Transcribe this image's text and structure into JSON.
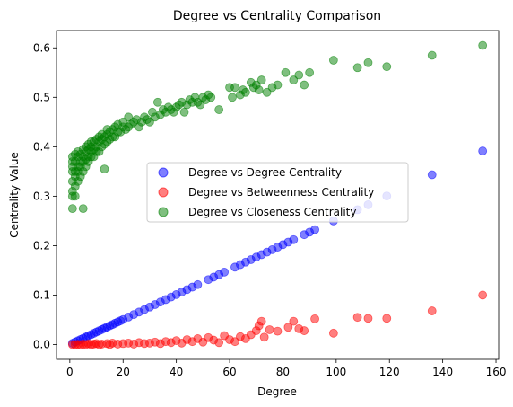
{
  "chart_data": {
    "type": "scatter",
    "title": "Degree vs Centrality Comparison",
    "xlabel": "Degree",
    "ylabel": "Centrality Value",
    "xlim": [
      -5,
      161
    ],
    "ylim": [
      -0.03,
      0.635
    ],
    "xticks": [
      "0",
      "20",
      "40",
      "60",
      "80",
      "100",
      "120",
      "140",
      "160"
    ],
    "yticks": [
      "0.0",
      "0.1",
      "0.2",
      "0.3",
      "0.4",
      "0.5",
      "0.6"
    ],
    "legend_position": "center-right",
    "grid": false,
    "series": [
      {
        "name": "Degree vs Degree Centrality",
        "color": "#0000ff",
        "points": [
          [
            1,
            0.0025
          ],
          [
            2,
            0.005
          ],
          [
            3,
            0.0076
          ],
          [
            4,
            0.0101
          ],
          [
            5,
            0.0126
          ],
          [
            6,
            0.0151
          ],
          [
            7,
            0.0177
          ],
          [
            8,
            0.0202
          ],
          [
            9,
            0.0227
          ],
          [
            10,
            0.0253
          ],
          [
            11,
            0.0278
          ],
          [
            12,
            0.0303
          ],
          [
            13,
            0.0328
          ],
          [
            14,
            0.0354
          ],
          [
            15,
            0.0379
          ],
          [
            16,
            0.0404
          ],
          [
            17,
            0.043
          ],
          [
            18,
            0.0455
          ],
          [
            19,
            0.048
          ],
          [
            20,
            0.0505
          ],
          [
            22,
            0.0556
          ],
          [
            24,
            0.0606
          ],
          [
            26,
            0.0657
          ],
          [
            28,
            0.0707
          ],
          [
            30,
            0.0758
          ],
          [
            32,
            0.0808
          ],
          [
            34,
            0.0859
          ],
          [
            36,
            0.0909
          ],
          [
            38,
            0.096
          ],
          [
            40,
            0.101
          ],
          [
            42,
            0.1061
          ],
          [
            44,
            0.1111
          ],
          [
            46,
            0.1162
          ],
          [
            48,
            0.1212
          ],
          [
            52,
            0.1313
          ],
          [
            54,
            0.1364
          ],
          [
            56,
            0.1414
          ],
          [
            58,
            0.1465
          ],
          [
            62,
            0.1566
          ],
          [
            64,
            0.1616
          ],
          [
            66,
            0.1667
          ],
          [
            68,
            0.1717
          ],
          [
            70,
            0.1768
          ],
          [
            72,
            0.1818
          ],
          [
            74,
            0.1869
          ],
          [
            76,
            0.1919
          ],
          [
            78,
            0.197
          ],
          [
            80,
            0.202
          ],
          [
            82,
            0.2071
          ],
          [
            84,
            0.2121
          ],
          [
            88,
            0.2222
          ],
          [
            90,
            0.2273
          ],
          [
            92,
            0.2323
          ],
          [
            99,
            0.25
          ],
          [
            108,
            0.2727
          ],
          [
            112,
            0.2828
          ],
          [
            119,
            0.3005
          ],
          [
            136,
            0.3434
          ],
          [
            155,
            0.3914
          ]
        ]
      },
      {
        "name": "Degree vs Betweenness Centrality",
        "color": "#ff0000",
        "points": [
          [
            1,
            0.0
          ],
          [
            2,
            0.0
          ],
          [
            3,
            0.0005
          ],
          [
            4,
            0.0
          ],
          [
            5,
            0.001
          ],
          [
            6,
            0.0
          ],
          [
            7,
            0.0015
          ],
          [
            8,
            0.0
          ],
          [
            9,
            0.001
          ],
          [
            10,
            0.002
          ],
          [
            11,
            0.0
          ],
          [
            12,
            0.001
          ],
          [
            14,
            0.002
          ],
          [
            15,
            0.0
          ],
          [
            16,
            0.003
          ],
          [
            18,
            0.001
          ],
          [
            20,
            0.002
          ],
          [
            22,
            0.003
          ],
          [
            24,
            0.001
          ],
          [
            26,
            0.004
          ],
          [
            28,
            0.002
          ],
          [
            30,
            0.003
          ],
          [
            32,
            0.005
          ],
          [
            34,
            0.002
          ],
          [
            36,
            0.006
          ],
          [
            38,
            0.004
          ],
          [
            40,
            0.008
          ],
          [
            42,
            0.003
          ],
          [
            44,
            0.01
          ],
          [
            46,
            0.006
          ],
          [
            48,
            0.012
          ],
          [
            50,
            0.005
          ],
          [
            52,
            0.014
          ],
          [
            54,
            0.009
          ],
          [
            56,
            0.004
          ],
          [
            58,
            0.018
          ],
          [
            60,
            0.01
          ],
          [
            62,
            0.006
          ],
          [
            64,
            0.016
          ],
          [
            66,
            0.012
          ],
          [
            68,
            0.02
          ],
          [
            70,
            0.028
          ],
          [
            71,
            0.038
          ],
          [
            72,
            0.047
          ],
          [
            73,
            0.015
          ],
          [
            75,
            0.03
          ],
          [
            78,
            0.027
          ],
          [
            82,
            0.035
          ],
          [
            84,
            0.047
          ],
          [
            86,
            0.032
          ],
          [
            88,
            0.028
          ],
          [
            92,
            0.052
          ],
          [
            99,
            0.023
          ],
          [
            108,
            0.055
          ],
          [
            112,
            0.053
          ],
          [
            119,
            0.053
          ],
          [
            136,
            0.068
          ],
          [
            155,
            0.1
          ]
        ]
      },
      {
        "name": "Degree vs Closeness Centrality",
        "color": "#008000",
        "points": [
          [
            1,
            0.275
          ],
          [
            1,
            0.3
          ],
          [
            1,
            0.31
          ],
          [
            1,
            0.33
          ],
          [
            1,
            0.35
          ],
          [
            1,
            0.36
          ],
          [
            1,
            0.37
          ],
          [
            1,
            0.38
          ],
          [
            2,
            0.3
          ],
          [
            2,
            0.32
          ],
          [
            2,
            0.34
          ],
          [
            2,
            0.35
          ],
          [
            2,
            0.37
          ],
          [
            2,
            0.385
          ],
          [
            3,
            0.33
          ],
          [
            3,
            0.35
          ],
          [
            3,
            0.36
          ],
          [
            3,
            0.38
          ],
          [
            3,
            0.39
          ],
          [
            4,
            0.34
          ],
          [
            4,
            0.36
          ],
          [
            4,
            0.37
          ],
          [
            4,
            0.385
          ],
          [
            5,
            0.275
          ],
          [
            5,
            0.35
          ],
          [
            5,
            0.37
          ],
          [
            5,
            0.38
          ],
          [
            5,
            0.395
          ],
          [
            6,
            0.36
          ],
          [
            6,
            0.375
          ],
          [
            6,
            0.39
          ],
          [
            6,
            0.4
          ],
          [
            7,
            0.37
          ],
          [
            7,
            0.38
          ],
          [
            7,
            0.395
          ],
          [
            7,
            0.405
          ],
          [
            8,
            0.38
          ],
          [
            8,
            0.39
          ],
          [
            8,
            0.4
          ],
          [
            8,
            0.41
          ],
          [
            9,
            0.38
          ],
          [
            9,
            0.395
          ],
          [
            9,
            0.41
          ],
          [
            10,
            0.39
          ],
          [
            10,
            0.4
          ],
          [
            10,
            0.415
          ],
          [
            11,
            0.39
          ],
          [
            11,
            0.41
          ],
          [
            11,
            0.42
          ],
          [
            12,
            0.4
          ],
          [
            12,
            0.415
          ],
          [
            12,
            0.425
          ],
          [
            13,
            0.355
          ],
          [
            13,
            0.405
          ],
          [
            13,
            0.42
          ],
          [
            14,
            0.41
          ],
          [
            14,
            0.425
          ],
          [
            14,
            0.435
          ],
          [
            15,
            0.415
          ],
          [
            15,
            0.43
          ],
          [
            16,
            0.42
          ],
          [
            16,
            0.435
          ],
          [
            17,
            0.42
          ],
          [
            17,
            0.44
          ],
          [
            18,
            0.43
          ],
          [
            18,
            0.445
          ],
          [
            19,
            0.43
          ],
          [
            20,
            0.44
          ],
          [
            20,
            0.45
          ],
          [
            21,
            0.435
          ],
          [
            22,
            0.44
          ],
          [
            22,
            0.46
          ],
          [
            23,
            0.445
          ],
          [
            24,
            0.45
          ],
          [
            25,
            0.455
          ],
          [
            26,
            0.44
          ],
          [
            27,
            0.45
          ],
          [
            28,
            0.46
          ],
          [
            29,
            0.455
          ],
          [
            30,
            0.45
          ],
          [
            31,
            0.47
          ],
          [
            32,
            0.46
          ],
          [
            33,
            0.49
          ],
          [
            34,
            0.465
          ],
          [
            35,
            0.475
          ],
          [
            36,
            0.47
          ],
          [
            37,
            0.48
          ],
          [
            38,
            0.475
          ],
          [
            39,
            0.47
          ],
          [
            40,
            0.48
          ],
          [
            41,
            0.485
          ],
          [
            42,
            0.49
          ],
          [
            43,
            0.47
          ],
          [
            44,
            0.485
          ],
          [
            45,
            0.495
          ],
          [
            46,
            0.49
          ],
          [
            47,
            0.5
          ],
          [
            48,
            0.49
          ],
          [
            49,
            0.485
          ],
          [
            50,
            0.5
          ],
          [
            51,
            0.495
          ],
          [
            52,
            0.505
          ],
          [
            53,
            0.5
          ],
          [
            56,
            0.475
          ],
          [
            60,
            0.52
          ],
          [
            61,
            0.5
          ],
          [
            62,
            0.52
          ],
          [
            64,
            0.505
          ],
          [
            65,
            0.515
          ],
          [
            66,
            0.51
          ],
          [
            68,
            0.53
          ],
          [
            69,
            0.52
          ],
          [
            70,
            0.525
          ],
          [
            71,
            0.515
          ],
          [
            72,
            0.535
          ],
          [
            74,
            0.51
          ],
          [
            76,
            0.52
          ],
          [
            78,
            0.525
          ],
          [
            81,
            0.55
          ],
          [
            84,
            0.535
          ],
          [
            86,
            0.545
          ],
          [
            88,
            0.525
          ],
          [
            90,
            0.55
          ],
          [
            99,
            0.575
          ],
          [
            108,
            0.56
          ],
          [
            112,
            0.57
          ],
          [
            119,
            0.562
          ],
          [
            136,
            0.585
          ],
          [
            155,
            0.605
          ]
        ]
      }
    ]
  }
}
